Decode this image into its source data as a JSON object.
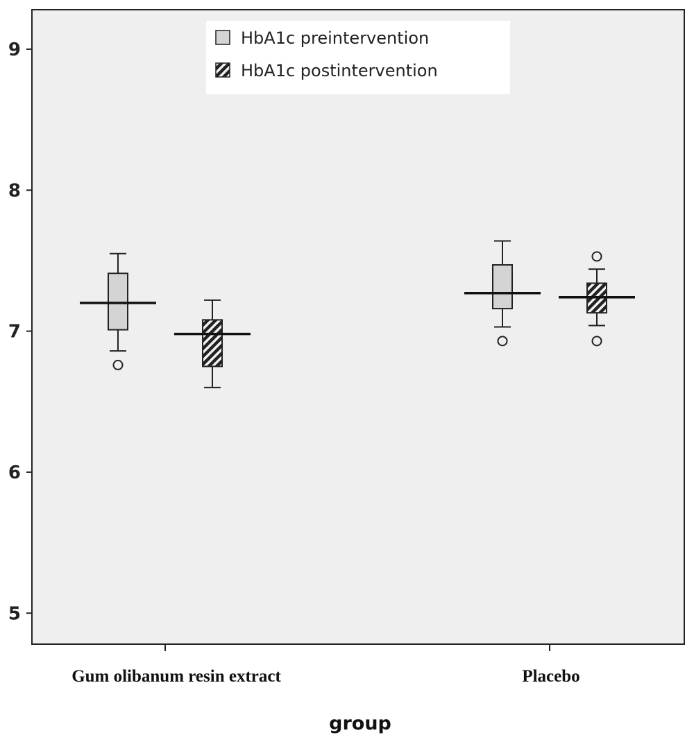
{
  "chart_data": {
    "type": "box",
    "xlabel": "group",
    "ylabel": "",
    "ylim": [
      4.78,
      9.28
    ],
    "yticks": [
      5,
      6,
      7,
      8,
      9
    ],
    "categories": [
      "Gum olibanum resin extract",
      "Placebo"
    ],
    "grid": false,
    "legend_position": "top-center",
    "background": "#efefef",
    "series": [
      {
        "name": "HbA1c preintervention",
        "fill": "#d4d4d4",
        "pattern": "solid",
        "boxes": [
          {
            "whisker_low": 6.86,
            "q1": 7.01,
            "median": 7.2,
            "q3": 7.41,
            "whisker_high": 7.55,
            "outliers": [
              6.76
            ]
          },
          {
            "whisker_low": 7.03,
            "q1": 7.16,
            "median": 7.27,
            "q3": 7.47,
            "whisker_high": 7.64,
            "outliers": [
              6.93
            ]
          }
        ]
      },
      {
        "name": "HbA1c postintervention",
        "fill": "#333333",
        "pattern": "hatched",
        "boxes": [
          {
            "whisker_low": 6.6,
            "q1": 6.75,
            "median": 6.98,
            "q3": 7.08,
            "whisker_high": 7.22,
            "outliers": []
          },
          {
            "whisker_low": 7.04,
            "q1": 7.13,
            "median": 7.24,
            "q3": 7.34,
            "whisker_high": 7.44,
            "outliers": [
              7.53,
              6.93
            ]
          }
        ]
      }
    ]
  }
}
